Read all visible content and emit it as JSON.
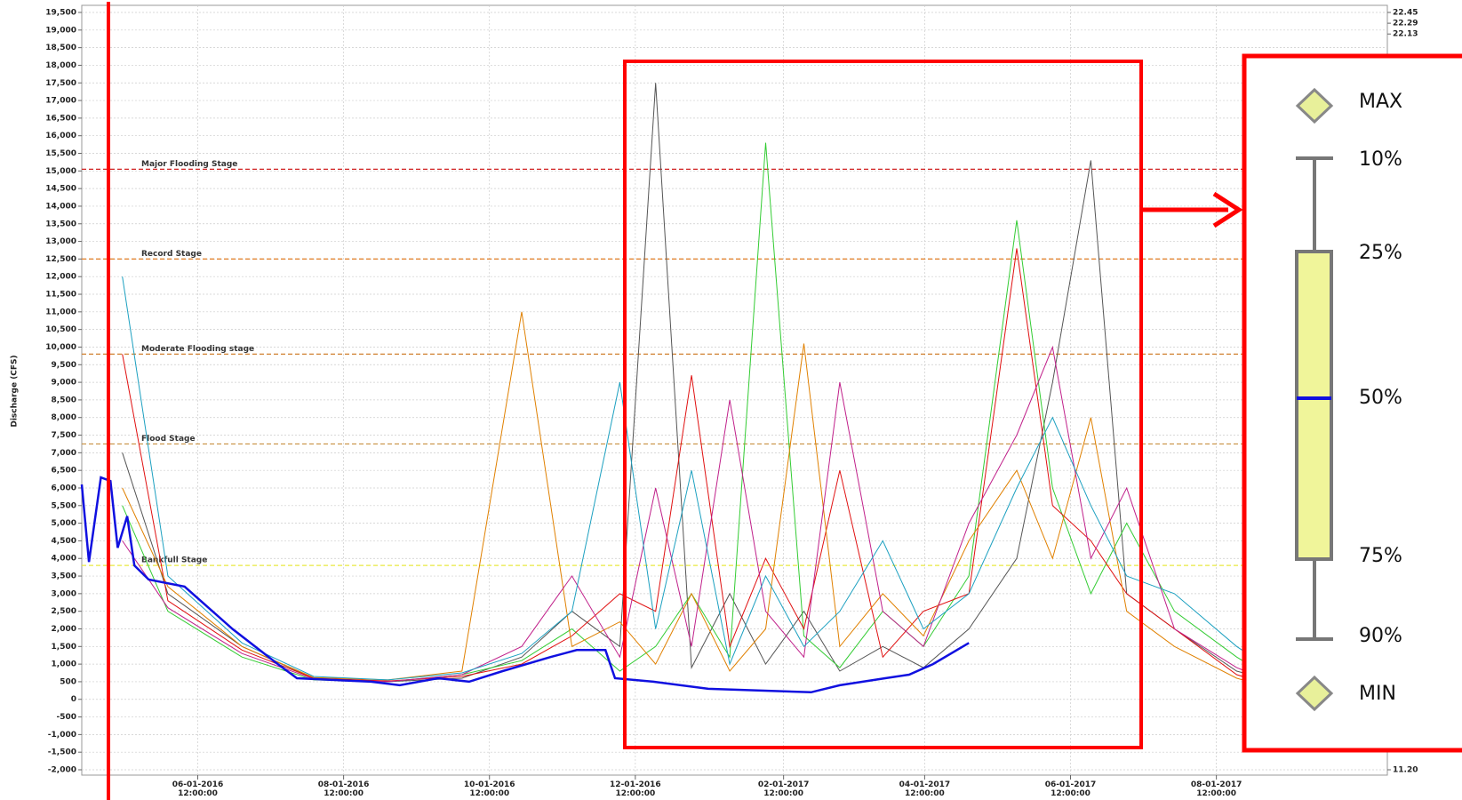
{
  "chart_data": {
    "type": "line",
    "y_label": "Discharge (CFS)",
    "xlim": [
      "2016-04-14",
      "2017-10-12"
    ],
    "xticks": [
      {
        "value": "2016-06-01T12:00:00",
        "label": "06-01-2016\n12:00:00"
      },
      {
        "value": "2016-08-01T12:00:00",
        "label": "08-01-2016\n12:00:00"
      },
      {
        "value": "2016-10-01T12:00:00",
        "label": "10-01-2016\n12:00:00"
      },
      {
        "value": "2016-12-01T12:00:00",
        "label": "12-01-2016\n12:00:00"
      },
      {
        "value": "2017-02-01T12:00:00",
        "label": "02-01-2017\n12:00:00"
      },
      {
        "value": "2017-04-01T12:00:00",
        "label": "04-01-2017\n12:00:00"
      },
      {
        "value": "2017-06-01T12:00:00",
        "label": "06-01-2017\n12:00:00"
      },
      {
        "value": "2017-08-01T12:00:00",
        "label": "08-01-2017\n12:00:00"
      }
    ],
    "ylim": [
      -2000,
      19500
    ],
    "yticks": [
      {
        "value": -2000,
        "label": "-2,000"
      },
      {
        "value": -1500,
        "label": "-1,500"
      },
      {
        "value": -1000,
        "label": "-1,000"
      },
      -500,
      0,
      500,
      {
        "value": 1000,
        "label": "1,000"
      },
      {
        "value": 1500,
        "label": "1,500"
      },
      {
        "value": 2000,
        "label": "2,000"
      },
      {
        "value": 2500,
        "label": "2,500"
      },
      {
        "value": 3000,
        "label": "3,000"
      },
      {
        "value": 3500,
        "label": "3,500"
      },
      {
        "value": 4000,
        "label": "4,000"
      },
      {
        "value": 4500,
        "label": "4,500"
      },
      {
        "value": 5000,
        "label": "5,000"
      },
      {
        "value": 5500,
        "label": "5,500"
      },
      {
        "value": 6000,
        "label": "6,000"
      },
      {
        "value": 6500,
        "label": "6,500"
      },
      {
        "value": 7000,
        "label": "7,000"
      },
      {
        "value": 7500,
        "label": "7,500"
      },
      {
        "value": 8000,
        "label": "8,000"
      },
      {
        "value": 8500,
        "label": "8,500"
      },
      {
        "value": 9000,
        "label": "9,000"
      },
      {
        "value": 9500,
        "label": "9,500"
      },
      {
        "value": 10000,
        "label": "10,000"
      },
      {
        "value": 10500,
        "label": "10,500"
      },
      {
        "value": 11000,
        "label": "11,000"
      },
      {
        "value": 11500,
        "label": "11,500"
      },
      {
        "value": 12000,
        "label": "12,000"
      },
      {
        "value": 12500,
        "label": "12,500"
      },
      {
        "value": 13000,
        "label": "13,000"
      },
      {
        "value": 13500,
        "label": "13,500"
      },
      {
        "value": 14000,
        "label": "14,000"
      },
      {
        "value": 14500,
        "label": "14,500"
      },
      {
        "value": 15000,
        "label": "15,000"
      },
      {
        "value": 15500,
        "label": "15,500"
      },
      {
        "value": 16000,
        "label": "16,000"
      },
      {
        "value": 16500,
        "label": "16,500"
      },
      {
        "value": 17000,
        "label": "17,000"
      },
      {
        "value": 17500,
        "label": "17,500"
      },
      {
        "value": 18000,
        "label": "18,000"
      },
      {
        "value": 18500,
        "label": "18,500"
      },
      {
        "value": 19000,
        "label": "19,000"
      },
      {
        "value": 19500,
        "label": "19,500"
      }
    ],
    "y2lim": [
      11.2,
      22.45
    ],
    "y2ticks": [
      22.45,
      22.29,
      22.13,
      {
        "value": 11.2,
        "label": "11.20"
      }
    ],
    "grid": true,
    "reference_lines": [
      {
        "label": "Major Flooding Stage",
        "value": 15050,
        "color": "#d02020"
      },
      {
        "label": "Record Stage",
        "value": 12500,
        "color": "#e07a20"
      },
      {
        "label": "Moderate Flooding stage",
        "value": 9800,
        "color": "#d08030"
      },
      {
        "label": "Flood Stage",
        "value": 7250,
        "color": "#c89040"
      },
      {
        "label": "Bankfull Stage",
        "value": 3800,
        "color": "#e8e840"
      }
    ],
    "x": [
      "2016-05-01",
      "2016-05-20",
      "2016-06-20",
      "2016-07-20",
      "2016-08-20",
      "2016-09-20",
      "2016-10-15",
      "2016-11-05",
      "2016-11-25",
      "2016-12-10",
      "2016-12-25",
      "2017-01-10",
      "2017-01-25",
      "2017-02-10",
      "2017-02-25",
      "2017-03-15",
      "2017-04-01",
      "2017-04-20",
      "2017-05-10",
      "2017-05-25",
      "2017-06-10",
      "2017-06-25",
      "2017-07-15",
      "2017-08-10",
      "2017-09-01"
    ],
    "series": [
      {
        "color": "#555555",
        "values": [
          7000,
          3000,
          1500,
          600,
          500,
          600,
          1200,
          2500,
          1500,
          17500,
          900,
          3000,
          1000,
          2500,
          800,
          1500,
          900,
          2000,
          4000,
          9000,
          15300,
          3000,
          2000,
          800,
          400
        ]
      },
      {
        "color": "#33cc33",
        "values": [
          5500,
          2500,
          1200,
          550,
          500,
          700,
          1100,
          2000,
          800,
          1500,
          3000,
          1200,
          15800,
          1800,
          900,
          2500,
          1500,
          3500,
          13600,
          6000,
          3000,
          5000,
          2500,
          1200,
          300
        ]
      },
      {
        "color": "#e01010",
        "values": [
          9800,
          2800,
          1400,
          600,
          520,
          650,
          1000,
          1800,
          3000,
          2500,
          9200,
          1500,
          4000,
          2000,
          6500,
          1200,
          2500,
          3000,
          12800,
          5500,
          4500,
          3000,
          2000,
          700,
          250
        ]
      },
      {
        "color": "#e08000",
        "values": [
          6000,
          3200,
          1500,
          620,
          550,
          800,
          11000,
          1500,
          2200,
          1000,
          3000,
          800,
          2000,
          10100,
          1500,
          3000,
          1800,
          4500,
          6500,
          4000,
          8000,
          2500,
          1500,
          600,
          200
        ]
      },
      {
        "color": "#c0208a",
        "values": [
          4500,
          2600,
          1300,
          580,
          500,
          700,
          1500,
          3500,
          1200,
          6000,
          1500,
          8500,
          2500,
          1200,
          9000,
          2500,
          1500,
          5000,
          7500,
          10000,
          4000,
          6000,
          2000,
          900,
          300
        ]
      },
      {
        "color": "#1ca0c0",
        "values": [
          12000,
          3500,
          1600,
          650,
          550,
          750,
          1300,
          2500,
          9000,
          2000,
          6500,
          1000,
          3500,
          1500,
          2500,
          4500,
          2000,
          3000,
          6000,
          8000,
          5500,
          3500,
          3000,
          1500,
          500
        ]
      },
      {
        "color": "#1010e0",
        "width": 2.5,
        "x": [
          "2016-04-14",
          "2016-04-17",
          "2016-04-22",
          "2016-04-26",
          "2016-04-29",
          "2016-05-03",
          "2016-05-06",
          "2016-05-12",
          "2016-05-27",
          "2016-06-16",
          "2016-07-05",
          "2016-07-13",
          "2016-08-13",
          "2016-08-25",
          "2016-09-10",
          "2016-09-23",
          "2016-10-07",
          "2016-10-27",
          "2016-11-07",
          "2016-11-19",
          "2016-11-23",
          "2016-12-09",
          "2017-01-01",
          "2017-02-13",
          "2017-02-25",
          "2017-03-16",
          "2017-03-26",
          "2017-04-05",
          "2017-04-20"
        ],
        "values": [
          6100,
          3900,
          6300,
          6200,
          4300,
          5200,
          3800,
          3400,
          3200,
          2000,
          1000,
          600,
          500,
          400,
          600,
          500,
          800,
          1200,
          1400,
          1400,
          600,
          500,
          300,
          200,
          400,
          600,
          700,
          1000,
          1600
        ]
      }
    ],
    "legend": {
      "items": [
        "MAX",
        "10%",
        "25%",
        "50%",
        "75%",
        "90%",
        "MIN"
      ]
    }
  }
}
